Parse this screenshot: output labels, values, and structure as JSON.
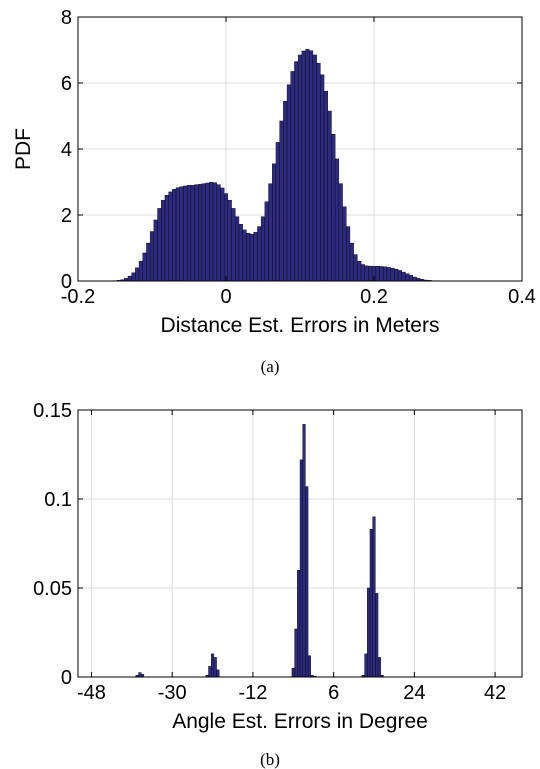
{
  "chart_data": [
    {
      "type": "bar",
      "subtitle": "(a)",
      "xlabel": "Distance Est. Errors in Meters",
      "ylabel": "PDF",
      "xlim": [
        -0.2,
        0.4
      ],
      "ylim": [
        0,
        8
      ],
      "xticks": [
        "-0.2",
        "0",
        "0.2",
        "0.4"
      ],
      "yticks": [
        "0",
        "2",
        "4",
        "6",
        "8"
      ],
      "grid": true,
      "bar_color": "#2e2a80",
      "bin_width": 0.005,
      "x": [
        -0.15,
        -0.145,
        -0.14,
        -0.135,
        -0.13,
        -0.125,
        -0.12,
        -0.115,
        -0.11,
        -0.105,
        -0.1,
        -0.095,
        -0.09,
        -0.085,
        -0.08,
        -0.075,
        -0.07,
        -0.065,
        -0.06,
        -0.055,
        -0.05,
        -0.045,
        -0.04,
        -0.035,
        -0.03,
        -0.025,
        -0.02,
        -0.015,
        -0.01,
        -0.005,
        0,
        0.005,
        0.01,
        0.015,
        0.02,
        0.025,
        0.03,
        0.035,
        0.04,
        0.045,
        0.05,
        0.055,
        0.06,
        0.065,
        0.07,
        0.075,
        0.08,
        0.085,
        0.09,
        0.095,
        0.1,
        0.105,
        0.11,
        0.115,
        0.12,
        0.125,
        0.13,
        0.135,
        0.14,
        0.145,
        0.15,
        0.155,
        0.16,
        0.165,
        0.17,
        0.175,
        0.18,
        0.185,
        0.19,
        0.195,
        0.2,
        0.205,
        0.21,
        0.215,
        0.22,
        0.225,
        0.23,
        0.235,
        0.24,
        0.245,
        0.25,
        0.255,
        0.26,
        0.265,
        0.27,
        0.275,
        0.28,
        0.285,
        0.29,
        0.295,
        0.3
      ],
      "values": [
        0.01,
        0.02,
        0.04,
        0.08,
        0.15,
        0.25,
        0.4,
        0.6,
        0.85,
        1.15,
        1.5,
        1.85,
        2.2,
        2.45,
        2.6,
        2.7,
        2.78,
        2.83,
        2.86,
        2.88,
        2.9,
        2.9,
        2.92,
        2.93,
        2.95,
        2.97,
        2.99,
        2.98,
        2.92,
        2.82,
        2.65,
        2.45,
        2.2,
        1.95,
        1.72,
        1.55,
        1.45,
        1.42,
        1.48,
        1.65,
        1.95,
        2.4,
        2.95,
        3.55,
        4.2,
        4.85,
        5.45,
        5.95,
        6.35,
        6.65,
        6.85,
        6.97,
        7.02,
        6.98,
        6.85,
        6.6,
        6.25,
        5.75,
        5.15,
        4.45,
        3.7,
        2.95,
        2.25,
        1.65,
        1.15,
        0.8,
        0.6,
        0.5,
        0.46,
        0.45,
        0.45,
        0.45,
        0.44,
        0.43,
        0.41,
        0.39,
        0.36,
        0.32,
        0.27,
        0.22,
        0.17,
        0.12,
        0.08,
        0.05,
        0.03,
        0.02,
        0.01,
        0.01,
        0.005,
        0.003,
        0.002
      ]
    },
    {
      "type": "bar",
      "subtitle": "(b)",
      "xlabel": "Angle Est. Errors in Degree",
      "ylabel": "",
      "xlim": [
        -51,
        48
      ],
      "ylim": [
        0,
        0.15
      ],
      "xticks": [
        "-48",
        "-30",
        "-12",
        "6",
        "24",
        "42"
      ],
      "yticks": [
        "0",
        "0.05",
        "0.1",
        "0.15"
      ],
      "grid": true,
      "bar_color": "#2e2a80",
      "bin_width": 0.6,
      "x": [
        -37.8,
        -37.2,
        -36.6,
        -22.2,
        -21.6,
        -21.0,
        -20.4,
        -19.8,
        -3.0,
        -2.4,
        -1.8,
        -1.2,
        -0.6,
        0.0,
        0.6,
        1.2,
        1.8,
        12.6,
        13.2,
        13.8,
        14.4,
        15.0,
        15.6,
        16.2,
        16.8
      ],
      "values": [
        0.001,
        0.0025,
        0.0015,
        0.001,
        0.006,
        0.013,
        0.011,
        0.004,
        0.005,
        0.027,
        0.06,
        0.122,
        0.142,
        0.107,
        0.012,
        0.001,
        0.0005,
        0.001,
        0.013,
        0.05,
        0.083,
        0.09,
        0.047,
        0.011,
        0.001
      ]
    }
  ]
}
